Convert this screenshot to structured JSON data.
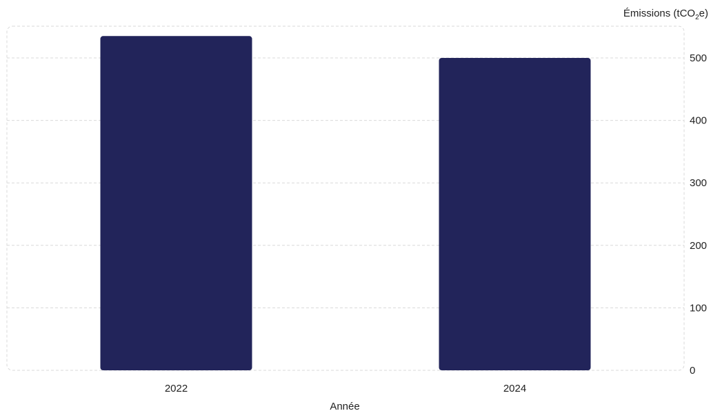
{
  "chart_data": {
    "type": "bar",
    "categories": [
      "2022",
      "2024"
    ],
    "values": [
      535,
      500
    ],
    "xlabel": "Année",
    "ylabel_main": "Émissions (tCO",
    "ylabel_sub": "2",
    "ylabel_end": "e)",
    "ylim": [
      0,
      500
    ],
    "yticks": [
      0,
      100,
      200,
      300,
      400,
      500
    ],
    "y_axis_side": "right",
    "grid": true,
    "bar_color": "#22245a"
  }
}
